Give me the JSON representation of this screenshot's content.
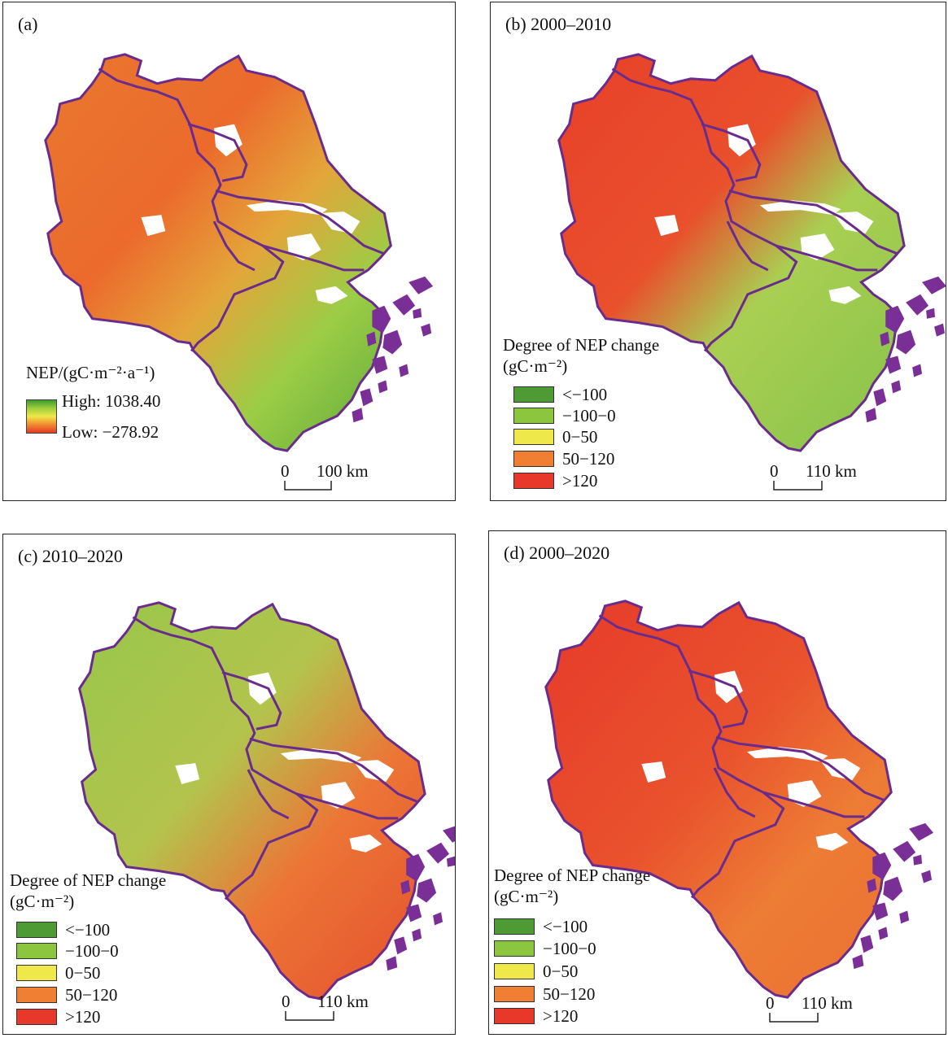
{
  "panels": {
    "a": {
      "label": "(a)"
    },
    "b": {
      "label": "(b) 2000–2010"
    },
    "c": {
      "label": "(c) 2010–2020"
    },
    "d": {
      "label": "(d) 2000–2020"
    }
  },
  "legend_a": {
    "title": "NEP/(gC·m⁻²·a⁻¹)",
    "high": "High: 1038.40",
    "low": "Low: −278.92",
    "gradient_colors": [
      "#3f9a2e",
      "#9fcf3c",
      "#f1e848",
      "#f08a2e",
      "#e23a26"
    ]
  },
  "legend_change": {
    "title_line1": "Degree of NEP change",
    "title_line2": "(gC·m⁻²)",
    "items": [
      {
        "label": "<−100",
        "color": "#4e9a35"
      },
      {
        "label": "−100−0",
        "color": "#8cc63f"
      },
      {
        "label": "0−50",
        "color": "#eee84a"
      },
      {
        "label": "50−120",
        "color": "#f07f33"
      },
      {
        "label": ">120",
        "color": "#e8382a"
      }
    ]
  },
  "scale": {
    "a": {
      "zero": "0",
      "dist": "100 km"
    },
    "b": {
      "zero": "0",
      "dist": "110 km"
    },
    "c": {
      "zero": "0",
      "dist": "110 km"
    },
    "d": {
      "zero": "0",
      "dist": "110 km"
    }
  },
  "colors": {
    "boundary": "#6a2c8c",
    "islands": "#7a2f96"
  }
}
